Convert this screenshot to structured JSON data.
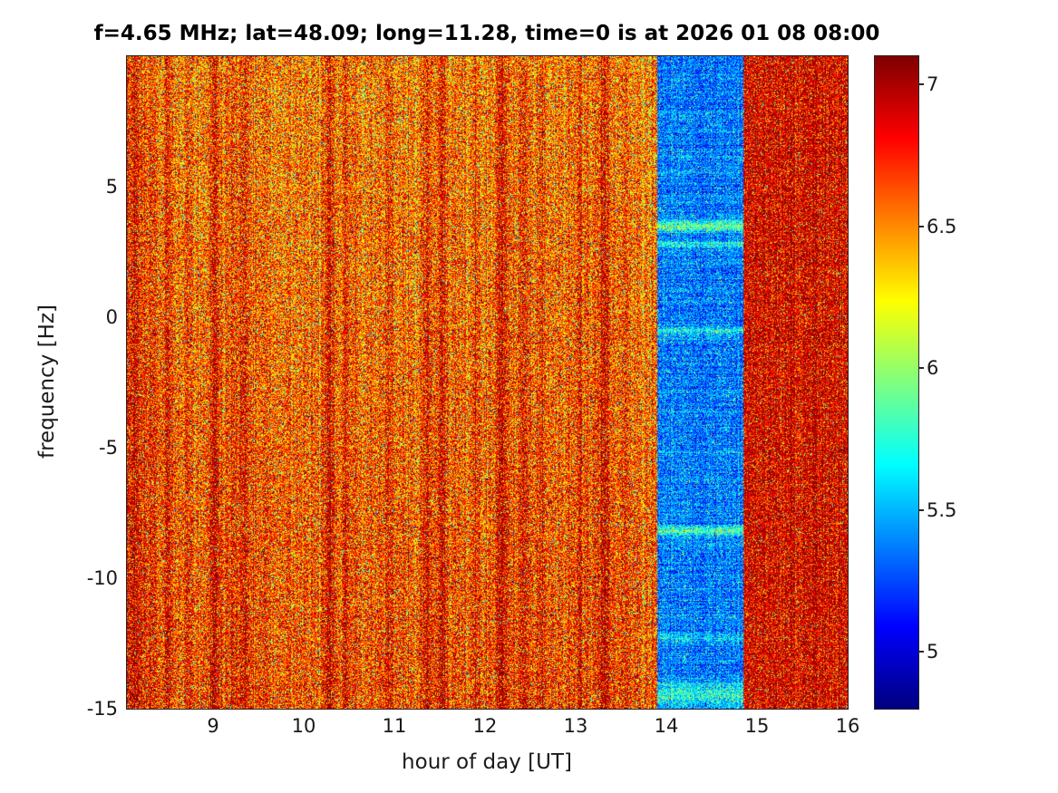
{
  "chart_data": {
    "type": "heatmap",
    "title": "f=4.65 MHz;  lat=48.09; long=11.28, time=0 is at 2026 01 08 08:00",
    "xlabel": "hour of day [UT]",
    "ylabel": "frequency [Hz]",
    "xlim": [
      8.05,
      16
    ],
    "ylim": [
      -15,
      10
    ],
    "xticks": [
      9,
      10,
      11,
      12,
      13,
      14,
      15,
      16
    ],
    "yticks": [
      5,
      0,
      -5,
      -10,
      -15
    ],
    "grid": false,
    "legend": "none",
    "colorbar": {
      "ticks": [
        7,
        6.5,
        6,
        5.5,
        5
      ],
      "range": [
        4.8,
        7.1
      ],
      "colormap": "jet",
      "position": "right"
    },
    "regions": [
      {
        "x_start": 8.05,
        "x_end": 13.9,
        "mean": 6.52,
        "noise_sd": 0.3,
        "y_gain": 0.006,
        "col_noise_sd": 0.08,
        "row_noise_sd": 0.02,
        "speckle_prob": 0.05,
        "speckle_delta": -1.3,
        "description": "orange-red speckled background with dark red vertical streaks"
      },
      {
        "x_start": 13.9,
        "x_end": 14.85,
        "mean": 5.35,
        "noise_sd": 0.2,
        "y_gain": 0.0,
        "col_noise_sd": 0.05,
        "row_noise_sd": 0.06,
        "speckle_prob": 0.06,
        "speckle_delta": 0.75,
        "description": "low-power blue vertical band"
      },
      {
        "x_start": 14.85,
        "x_end": 16.0,
        "mean": 6.88,
        "noise_sd": 0.24,
        "y_gain": 0.0,
        "col_noise_sd": 0.07,
        "row_noise_sd": 0.03,
        "speckle_prob": 0.06,
        "speckle_delta": -1.1,
        "description": "dark red high-power band"
      }
    ],
    "streaks": [
      {
        "x": 8.12,
        "amp": 0.3,
        "w": 0.1
      },
      {
        "x": 8.32,
        "amp": 0.22,
        "w": 0.05
      },
      {
        "x": 8.5,
        "amp": 0.25,
        "w": 0.04
      },
      {
        "x": 8.72,
        "amp": 0.18,
        "w": 0.04
      },
      {
        "x": 9.02,
        "amp": 0.3,
        "w": 0.06
      },
      {
        "x": 9.22,
        "amp": 0.2,
        "w": 0.04
      },
      {
        "x": 9.35,
        "amp": 0.25,
        "w": 0.05
      },
      {
        "x": 9.55,
        "amp": 0.15,
        "w": 0.04
      },
      {
        "x": 10.28,
        "amp": 0.28,
        "w": 0.06
      },
      {
        "x": 10.45,
        "amp": 0.18,
        "w": 0.04
      },
      {
        "x": 10.95,
        "amp": 0.15,
        "w": 0.05
      },
      {
        "x": 11.35,
        "amp": 0.22,
        "w": 0.05
      },
      {
        "x": 11.52,
        "amp": 0.28,
        "w": 0.06
      },
      {
        "x": 11.9,
        "amp": 0.18,
        "w": 0.04
      },
      {
        "x": 12.18,
        "amp": 0.3,
        "w": 0.07
      },
      {
        "x": 12.42,
        "amp": 0.22,
        "w": 0.05
      },
      {
        "x": 12.62,
        "amp": 0.18,
        "w": 0.04
      },
      {
        "x": 13.05,
        "amp": 0.15,
        "w": 0.05
      },
      {
        "x": 13.32,
        "amp": 0.28,
        "w": 0.06
      },
      {
        "x": 13.55,
        "amp": 0.18,
        "w": 0.04
      }
    ],
    "band_features": [
      {
        "y": 3.5,
        "amp": 0.55,
        "h": 0.2
      },
      {
        "y": 2.8,
        "amp": 0.3,
        "h": 0.15
      },
      {
        "y": -0.5,
        "amp": 0.25,
        "h": 0.15
      },
      {
        "y": -8.2,
        "amp": 0.45,
        "h": 0.18
      },
      {
        "y": -12.3,
        "amp": 0.3,
        "h": 0.15
      },
      {
        "y": -14.5,
        "amp": 0.35,
        "h": 0.5
      }
    ]
  }
}
